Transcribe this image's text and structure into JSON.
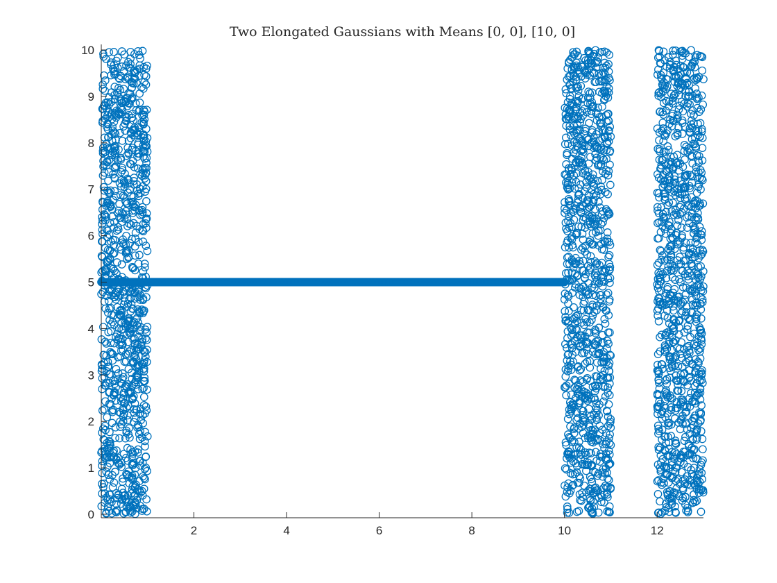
{
  "chart_data": {
    "type": "scatter",
    "title": "Two Elongated Gaussians with Means [0, 0], [10, 0]",
    "xlabel": "",
    "ylabel": "",
    "xlim": [
      0,
      13
    ],
    "ylim": [
      0,
      10
    ],
    "x_ticks": [
      2,
      4,
      6,
      8,
      10,
      12
    ],
    "y_ticks": [
      0,
      1,
      2,
      3,
      4,
      5,
      6,
      7,
      8,
      9,
      10
    ],
    "x_tick_labels": [
      "2",
      "4",
      "6",
      "8",
      "10",
      "12"
    ],
    "y_tick_labels": [
      "0",
      "1",
      "2",
      "3",
      "4",
      "5",
      "6",
      "7",
      "8",
      "9",
      "10"
    ],
    "grid": false,
    "legend": "none",
    "marker": "open-circle",
    "color": "#0072BD",
    "series": [
      {
        "description": "uniform random band, x in [0, 1], y in [0, 10]",
        "x_range": [
          0,
          1
        ],
        "y_range": [
          0,
          10
        ],
        "n_points": 1000
      },
      {
        "description": "horizontal line of points at y = 5 from x = 0 to 10",
        "x_range": [
          0,
          10
        ],
        "y_value": 5,
        "n_points": 1000
      },
      {
        "description": "uniform random band, x in [10, 11], y in [0, 10]",
        "x_range": [
          10,
          11
        ],
        "y_range": [
          0,
          10
        ],
        "n_points": 1000
      },
      {
        "description": "uniform random band, x in [12, 13], y in [0, 10]",
        "x_range": [
          12,
          13
        ],
        "y_range": [
          0,
          10
        ],
        "n_points": 1000
      }
    ]
  }
}
